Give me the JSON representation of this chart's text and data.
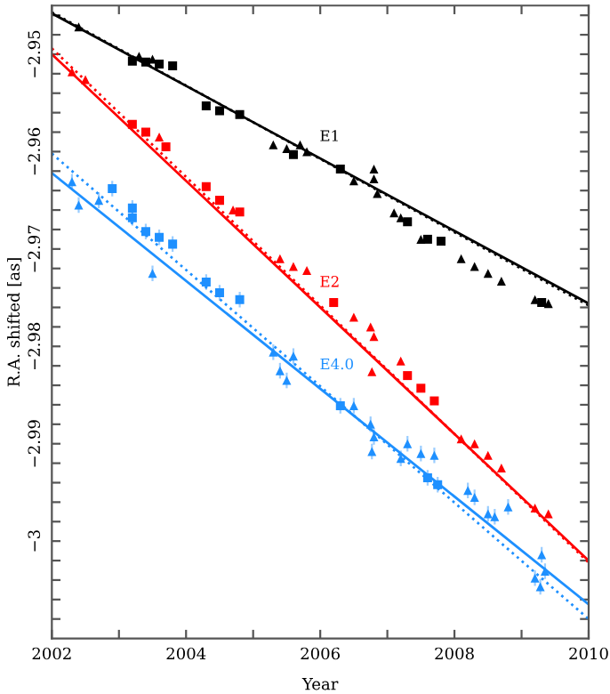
{
  "chart_data": {
    "type": "scatter",
    "xlabel": "Year",
    "ylabel": "R.A. shifted [as]",
    "xlim": [
      2002,
      2010
    ],
    "ylim": [
      -3.01,
      -2.945
    ],
    "xticks": [
      2002,
      {
        "value": 2003,
        "label": null
      },
      2004,
      {
        "value": 2005,
        "label": null
      },
      2006,
      {
        "value": 2007,
        "label": null
      },
      2008,
      {
        "value": 2009,
        "label": null
      },
      2010
    ],
    "yticks": [
      {
        "value": -3.008,
        "label": null
      },
      {
        "value": -3.006,
        "label": null
      },
      {
        "value": -3.004,
        "label": null
      },
      {
        "value": -3.002,
        "label": null
      },
      {
        "value": -3.0,
        "label": "−3"
      },
      {
        "value": -2.998,
        "label": null
      },
      {
        "value": -2.996,
        "label": null
      },
      {
        "value": -2.994,
        "label": null
      },
      {
        "value": -2.992,
        "label": null
      },
      {
        "value": -2.99,
        "label": "−2.99"
      },
      {
        "value": -2.988,
        "label": null
      },
      {
        "value": -2.986,
        "label": null
      },
      {
        "value": -2.984,
        "label": null
      },
      {
        "value": -2.982,
        "label": null
      },
      {
        "value": -2.98,
        "label": "−2.98"
      },
      {
        "value": -2.978,
        "label": null
      },
      {
        "value": -2.976,
        "label": null
      },
      {
        "value": -2.974,
        "label": null
      },
      {
        "value": -2.972,
        "label": null
      },
      {
        "value": -2.97,
        "label": "−2.97"
      },
      {
        "value": -2.968,
        "label": null
      },
      {
        "value": -2.966,
        "label": null
      },
      {
        "value": -2.964,
        "label": null
      },
      {
        "value": -2.962,
        "label": null
      },
      {
        "value": -2.96,
        "label": "−2.96"
      },
      {
        "value": -2.958,
        "label": null
      },
      {
        "value": -2.956,
        "label": null
      },
      {
        "value": -2.954,
        "label": null
      },
      {
        "value": -2.952,
        "label": null
      },
      {
        "value": -2.95,
        "label": "−2.95"
      },
      {
        "value": -2.948,
        "label": null
      },
      {
        "value": -2.946,
        "label": null
      }
    ],
    "grid": false,
    "series": [
      {
        "type": "line",
        "name": "E1",
        "line_style": "solid",
        "color": "#000000",
        "x": [
          2002,
          2010
        ],
        "values": [
          -2.9458,
          -2.9756
        ]
      },
      {
        "type": "line",
        "line_style": "dotted",
        "color": "#000000",
        "x": [
          2002,
          2010
        ],
        "values": [
          -2.9457,
          -2.9758
        ]
      },
      {
        "type": "line",
        "name": "E2",
        "line_style": "solid",
        "color": "#ff0000",
        "x": [
          2002,
          2010
        ],
        "values": [
          -2.95,
          -3.002
        ]
      },
      {
        "type": "line",
        "line_style": "dotted",
        "color": "#ff0000",
        "x": [
          2002,
          2010
        ],
        "values": [
          -2.9494,
          -3.0022
        ]
      },
      {
        "type": "line",
        "name": "E4.0",
        "line_style": "solid",
        "color": "#1e90ff",
        "x": [
          2002,
          2010
        ],
        "values": [
          -2.9622,
          -3.0065
        ]
      },
      {
        "type": "line",
        "line_style": "dotted",
        "color": "#1e90ff",
        "x": [
          2002,
          2010
        ],
        "values": [
          -2.9602,
          -3.008
        ]
      },
      {
        "marker": "triangle",
        "color": "#000000",
        "x": [
          2002.4,
          2003.3,
          2003.5,
          2005.3,
          2005.5,
          2005.7,
          2005.8,
          2006.5,
          2006.8,
          2006.8,
          2006.85,
          2007.1,
          2007.2,
          2007.5,
          2008.1,
          2008.3,
          2008.5,
          2008.7,
          2009.2,
          2009.4
        ],
        "values": [
          -2.9472,
          -2.9502,
          -2.9505,
          -2.9593,
          -2.9597,
          -2.9593,
          -2.96,
          -2.963,
          -2.9618,
          -2.9628,
          -2.9643,
          -2.9663,
          -2.9668,
          -2.969,
          -2.971,
          -2.9718,
          -2.9725,
          -2.9733,
          -2.9752,
          -2.9756
        ]
      },
      {
        "marker": "square",
        "color": "#000000",
        "x": [
          2003.2,
          2003.4,
          2003.6,
          2003.8,
          2004.3,
          2004.5,
          2004.8,
          2005.6,
          2006.3,
          2007.3,
          2007.6,
          2007.8,
          2009.3
        ],
        "values": [
          -2.9507,
          -2.9508,
          -2.951,
          -2.9512,
          -2.9553,
          -2.9558,
          -2.9562,
          -2.9603,
          -2.9618,
          -2.9672,
          -2.969,
          -2.9692,
          -2.9755
        ]
      },
      {
        "marker": "triangle",
        "color": "#ff0000",
        "x": [
          2002.3,
          2002.5,
          2003.6,
          2004.7,
          2005.4,
          2005.6,
          2005.8,
          2006.5,
          2006.75,
          2006.8,
          2006.77,
          2007.2,
          2008.1,
          2008.3,
          2008.5,
          2008.7,
          2009.2,
          2009.4
        ],
        "values": [
          -2.9518,
          -2.9526,
          -2.9585,
          -2.966,
          -2.971,
          -2.9718,
          -2.9722,
          -2.977,
          -2.978,
          -2.979,
          -2.9826,
          -2.9815,
          -2.9895,
          -2.99,
          -2.9912,
          -2.9925,
          -2.9966,
          -2.9972
        ]
      },
      {
        "marker": "square",
        "color": "#ff0000",
        "x": [
          2003.2,
          2003.4,
          2003.7,
          2004.3,
          2004.5,
          2004.8,
          2006.2,
          2007.3,
          2007.5,
          2007.7
        ],
        "values": [
          -2.9572,
          -2.958,
          -2.9595,
          -2.9636,
          -2.965,
          -2.9662,
          -2.9755,
          -2.983,
          -2.9843,
          -2.9856
        ]
      },
      {
        "marker": "triangle",
        "color": "#1e90ff",
        "x": [
          2002.3,
          2002.4,
          2002.7,
          2003.5,
          2005.3,
          2005.4,
          2005.5,
          2005.6,
          2006.5,
          2006.75,
          2006.8,
          2006.77,
          2007.2,
          2007.3,
          2007.5,
          2007.7,
          2008.2,
          2008.3,
          2008.5,
          2008.6,
          2008.8,
          2009.2,
          2009.28,
          2009.3,
          2009.35
        ],
        "values": [
          -2.9631,
          -2.9655,
          -2.965,
          -2.9725,
          -2.9806,
          -2.9825,
          -2.9835,
          -2.981,
          -2.9861,
          -2.988,
          -2.9893,
          -2.9908,
          -2.9915,
          -2.99,
          -2.991,
          -2.9912,
          -2.9948,
          -2.9955,
          -2.9972,
          -2.9975,
          -2.9965,
          -3.0038,
          -3.0047,
          -3.0014,
          -3.0031
        ],
        "errors": [
          0.0008,
          0.0008,
          0.0008,
          0.0008,
          0.0008,
          0.0008,
          0.0008,
          0.0008,
          0.0008,
          0.0008,
          0.0008,
          0.0008,
          0.0008,
          0.0008,
          0.0008,
          0.0008,
          0.0008,
          0.0008,
          0.0008,
          0.0008,
          0.0008,
          0.0008,
          0.0008,
          0.0008,
          0.0008
        ]
      },
      {
        "marker": "square",
        "color": "#1e90ff",
        "x": [
          2002.9,
          2003.2,
          2003.2,
          2003.4,
          2003.6,
          2003.8,
          2004.3,
          2004.5,
          2004.8,
          2006.3,
          2007.6,
          2007.75
        ],
        "values": [
          -2.9638,
          -2.9658,
          -2.9668,
          -2.9682,
          -2.9688,
          -2.9695,
          -2.9734,
          -2.9745,
          -2.9752,
          -2.9861,
          -2.9935,
          -2.9942
        ],
        "errors": [
          0.0008,
          0.0008,
          0.0008,
          0.0008,
          0.0008,
          0.0008,
          0.0008,
          0.0008,
          0.0008,
          0.0008,
          0.0008,
          0.0008
        ]
      }
    ]
  }
}
